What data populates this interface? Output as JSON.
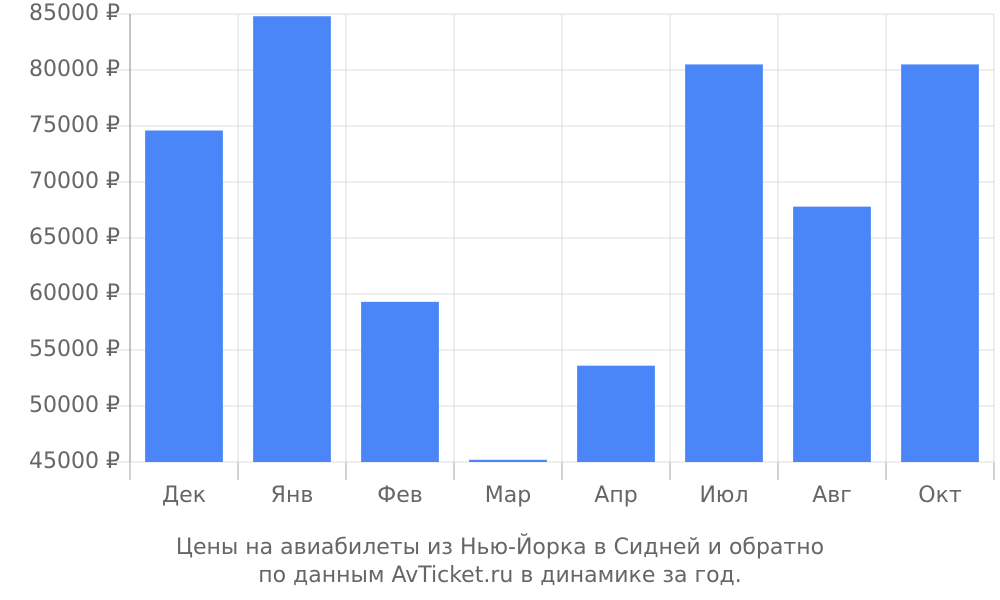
{
  "chart_data": {
    "type": "bar",
    "title": "Цены на авиабилеты из Нью-Йорка в Сидней и обратно",
    "subtitle": "по данным AvTicket.ru в динамике за год.",
    "categories": [
      "Дек",
      "Янв",
      "Фев",
      "Мар",
      "Апр",
      "Июл",
      "Авг",
      "Окт"
    ],
    "values": [
      74600,
      84800,
      59300,
      45200,
      53600,
      80500,
      67800,
      80500
    ],
    "color": "#4a86f8",
    "ylim": [
      45000,
      85000
    ],
    "yticks": [
      {
        "value": 45000,
        "label": "45000 ₽"
      },
      {
        "value": 50000,
        "label": "50000 ₽"
      },
      {
        "value": 55000,
        "label": "55000 ₽"
      },
      {
        "value": 60000,
        "label": "60000 ₽"
      },
      {
        "value": 65000,
        "label": "65000 ₽"
      },
      {
        "value": 70000,
        "label": "70000 ₽"
      },
      {
        "value": 75000,
        "label": "75000 ₽"
      },
      {
        "value": 80000,
        "label": "80000 ₽"
      },
      {
        "value": 85000,
        "label": "85000 ₽"
      }
    ],
    "grid": true
  }
}
